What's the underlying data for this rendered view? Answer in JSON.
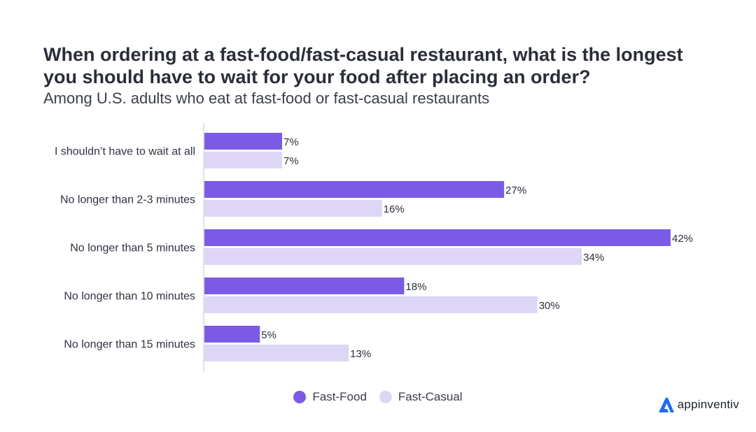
{
  "title": "When ordering at a fast-food/fast-casual restaurant, what is the longest you should have to wait for your food after placing an order?",
  "subtitle": "Among U.S. adults who eat at fast-food or fast-casual restaurants",
  "brand": {
    "name": "appinventiv",
    "icon": "appinventiv-logo-icon"
  },
  "colors": {
    "fast_food": "#7b5be6",
    "fast_casual": "#ddd6f7",
    "axis": "#d9d9d9",
    "text": "#2b2f3a",
    "brand_blue": "#1c6ef2"
  },
  "legend": [
    {
      "label": "Fast-Food",
      "color": "#7b5be6"
    },
    {
      "label": "Fast-Casual",
      "color": "#ddd6f7"
    }
  ],
  "chart_data": {
    "type": "bar",
    "orientation": "horizontal",
    "categories": [
      "I shouldn’t have to wait at all",
      "No longer than 2-3 minutes",
      "No longer than 5 minutes",
      "No longer than 10 minutes",
      "No longer than 15 minutes"
    ],
    "series": [
      {
        "name": "Fast-Food",
        "values": [
          7,
          27,
          42,
          18,
          5
        ],
        "labels": [
          "7%",
          "27%",
          "42%",
          "18%",
          "5%"
        ]
      },
      {
        "name": "Fast-Casual",
        "values": [
          7,
          16,
          34,
          30,
          13
        ],
        "labels": [
          "7%",
          "16%",
          "34%",
          "30%",
          "13%"
        ]
      }
    ],
    "xlim": [
      0,
      42
    ],
    "grid": false,
    "legend_position": "bottom"
  }
}
